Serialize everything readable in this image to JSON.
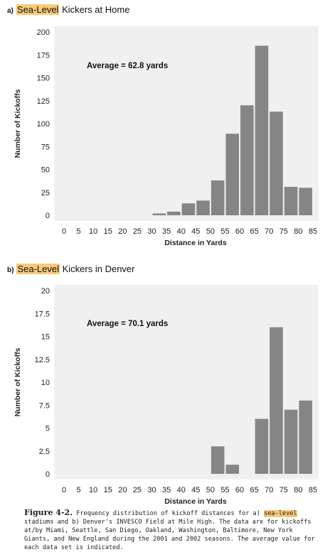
{
  "panels": [
    {
      "letter": "a)",
      "title_highlight": "Sea-Level",
      "title_rest": " Kickers at Home",
      "average_label": "Average = 62.8 yards"
    },
    {
      "letter": "b)",
      "title_highlight": "Sea-Level",
      "title_rest": " Kickers in Denver",
      "average_label": "Average = 70.1 yards"
    }
  ],
  "caption": {
    "figure": "Figure 4-2.",
    "text_1": " Frequency distribution of kickoff distances for a) ",
    "highlight": "sea-level",
    "text_2": " stadiums and b) Denver's INVESCO Field at Mile High. The data are for kickoffs at/by Miami, Seattle, San Diego, Oakland, Washington, Baltimore, New York Giants, and New England during the 2001 and 2002 seasons. The average value for each data set is indicated."
  },
  "colors": {
    "bar": "#858585",
    "plot_bg": "#f0f0f0",
    "highlight": "#f7c97a"
  },
  "chart_data": [
    {
      "type": "bar",
      "title": "Sea-Level Kickers at Home",
      "xlabel": "Distance in Yards",
      "ylabel": "Number of Kickoffs",
      "xticks": [
        0,
        5,
        10,
        15,
        20,
        25,
        30,
        35,
        40,
        45,
        50,
        55,
        60,
        65,
        70,
        75,
        80,
        85
      ],
      "yticks": [
        0,
        25,
        50,
        75,
        100,
        125,
        150,
        175,
        200
      ],
      "ytick_labels": [
        "0",
        "25",
        "50",
        "75",
        "100",
        "125",
        "150",
        "175",
        "200"
      ],
      "xlim": [
        0,
        85
      ],
      "ylim": [
        0,
        200
      ],
      "bin_width": 5,
      "bins_start": [
        30,
        35,
        40,
        45,
        50,
        55,
        60,
        65,
        70,
        75,
        80
      ],
      "values": [
        2,
        4,
        13,
        16,
        38,
        89,
        120,
        185,
        113,
        31,
        30
      ],
      "annotation": "Average = 62.8 yards",
      "grid": false
    },
    {
      "type": "bar",
      "title": "Sea-Level Kickers in Denver",
      "xlabel": "Distance in Yards",
      "ylabel": "Number of Kickoffs",
      "xticks": [
        0,
        5,
        10,
        15,
        20,
        25,
        30,
        35,
        40,
        45,
        50,
        55,
        60,
        65,
        70,
        75,
        80,
        85
      ],
      "yticks": [
        0,
        2.5,
        5,
        7.5,
        10,
        12.5,
        15,
        17.5,
        20
      ],
      "ytick_labels": [
        "0",
        "2.5",
        "5",
        "7.5",
        "10",
        "12.5",
        "15",
        "17.5",
        "20"
      ],
      "xlim": [
        0,
        85
      ],
      "ylim": [
        0,
        20
      ],
      "bin_width": 5,
      "bins_start": [
        50,
        55,
        65,
        70,
        75,
        80
      ],
      "values": [
        3,
        1,
        6,
        16,
        7,
        8
      ],
      "annotation": "Average = 70.1 yards",
      "grid": false
    }
  ]
}
